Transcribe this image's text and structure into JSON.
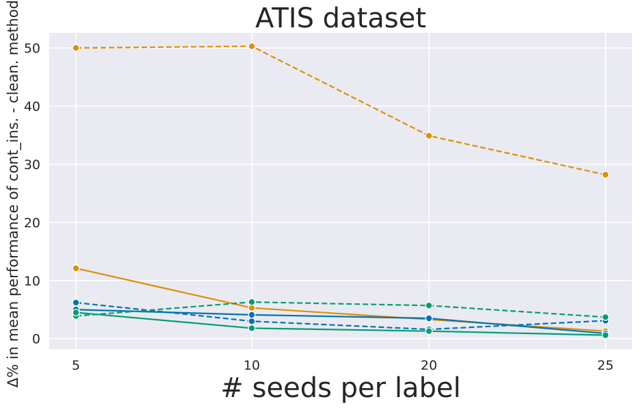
{
  "chart_data": {
    "type": "line",
    "title": "ATIS dataset",
    "xlabel": "# seeds per label",
    "ylabel": "Δ% in mean performance of cont_ins. - clean. method",
    "x": [
      5,
      10,
      20,
      25
    ],
    "x_ticks": [
      "5",
      "10",
      "20",
      "25"
    ],
    "y_ticks": [
      "0",
      "10",
      "20",
      "30",
      "40",
      "50"
    ],
    "ylim": [
      -1.8,
      52.6
    ],
    "grid": true,
    "legend": "none",
    "series": [
      {
        "color": "#de8f05",
        "style": "dashed",
        "values": [
          50.0,
          50.3,
          34.9,
          28.2
        ]
      },
      {
        "color": "#de8f05",
        "style": "solid",
        "values": [
          12.1,
          5.3,
          3.3,
          1.3
        ]
      },
      {
        "color": "#0173b2",
        "style": "dashed",
        "values": [
          6.2,
          3.0,
          1.6,
          3.1
        ]
      },
      {
        "color": "#0173b2",
        "style": "solid",
        "values": [
          5.0,
          4.1,
          3.5,
          0.9
        ]
      },
      {
        "color": "#029e73",
        "style": "dashed",
        "values": [
          3.9,
          6.3,
          5.7,
          3.7
        ]
      },
      {
        "color": "#029e73",
        "style": "solid",
        "values": [
          4.5,
          1.8,
          1.3,
          0.6
        ]
      }
    ]
  }
}
